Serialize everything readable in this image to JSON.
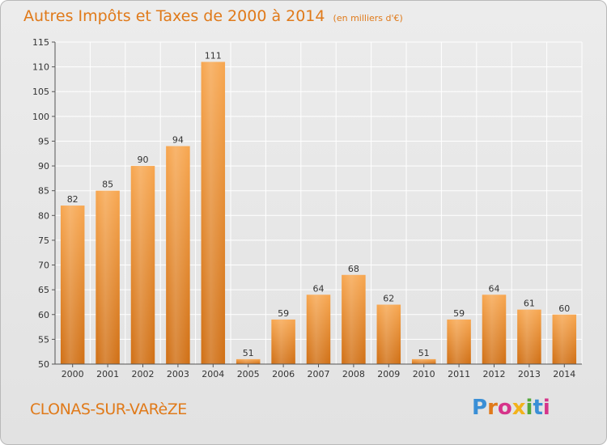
{
  "header": {
    "title": "Autres Impôts et Taxes de 2000 à 2014",
    "unit": "(en milliers d'€)"
  },
  "footer": {
    "commune": "CLONAS-SUR-VARèZE",
    "brand": "Proxiti"
  },
  "colors": {
    "accent": "#e07a1a",
    "bar_top": "#f7a64f",
    "bar_bottom": "#d06f14",
    "grid": "#ffffff"
  },
  "chart_data": {
    "type": "bar",
    "categories": [
      "2000",
      "2001",
      "2002",
      "2003",
      "2004",
      "2005",
      "2006",
      "2007",
      "2008",
      "2009",
      "2010",
      "2011",
      "2012",
      "2013",
      "2014"
    ],
    "values": [
      82,
      85,
      90,
      94,
      111,
      51,
      59,
      64,
      68,
      62,
      51,
      59,
      64,
      61,
      60
    ],
    "ylim": [
      50,
      115
    ],
    "yticks": [
      50,
      55,
      60,
      65,
      70,
      75,
      80,
      85,
      90,
      95,
      100,
      105,
      110,
      115
    ],
    "title": "Autres Impôts et Taxes de 2000 à 2014",
    "xlabel": "",
    "ylabel": "",
    "grid": true
  }
}
